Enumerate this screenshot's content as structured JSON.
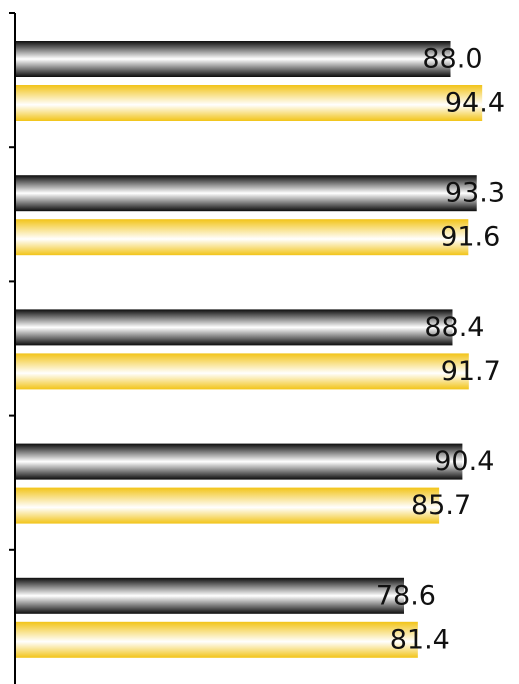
{
  "chart_data": {
    "type": "bar",
    "orientation": "horizontal",
    "categories": [
      "",
      "",
      "",
      "",
      ""
    ],
    "series": [
      {
        "values": [
          88.0,
          93.3,
          88.4,
          90.4,
          78.6
        ]
      },
      {
        "values": [
          94.4,
          91.6,
          91.7,
          85.7,
          81.4
        ]
      }
    ],
    "value_labels": [
      [
        "88.0",
        "93.3",
        "88.4",
        "90.4",
        "78.6"
      ],
      [
        "94.4",
        "91.6",
        "91.7",
        "85.7",
        "81.4"
      ]
    ],
    "xlim": [
      0,
      98
    ],
    "grid": false,
    "legend": "none",
    "title": "",
    "xlabel": "",
    "ylabel": ""
  },
  "colors": {
    "series_0": "#1a1a1a",
    "series_1": "#f2c418",
    "axis": "#000000",
    "label": "#111111"
  }
}
